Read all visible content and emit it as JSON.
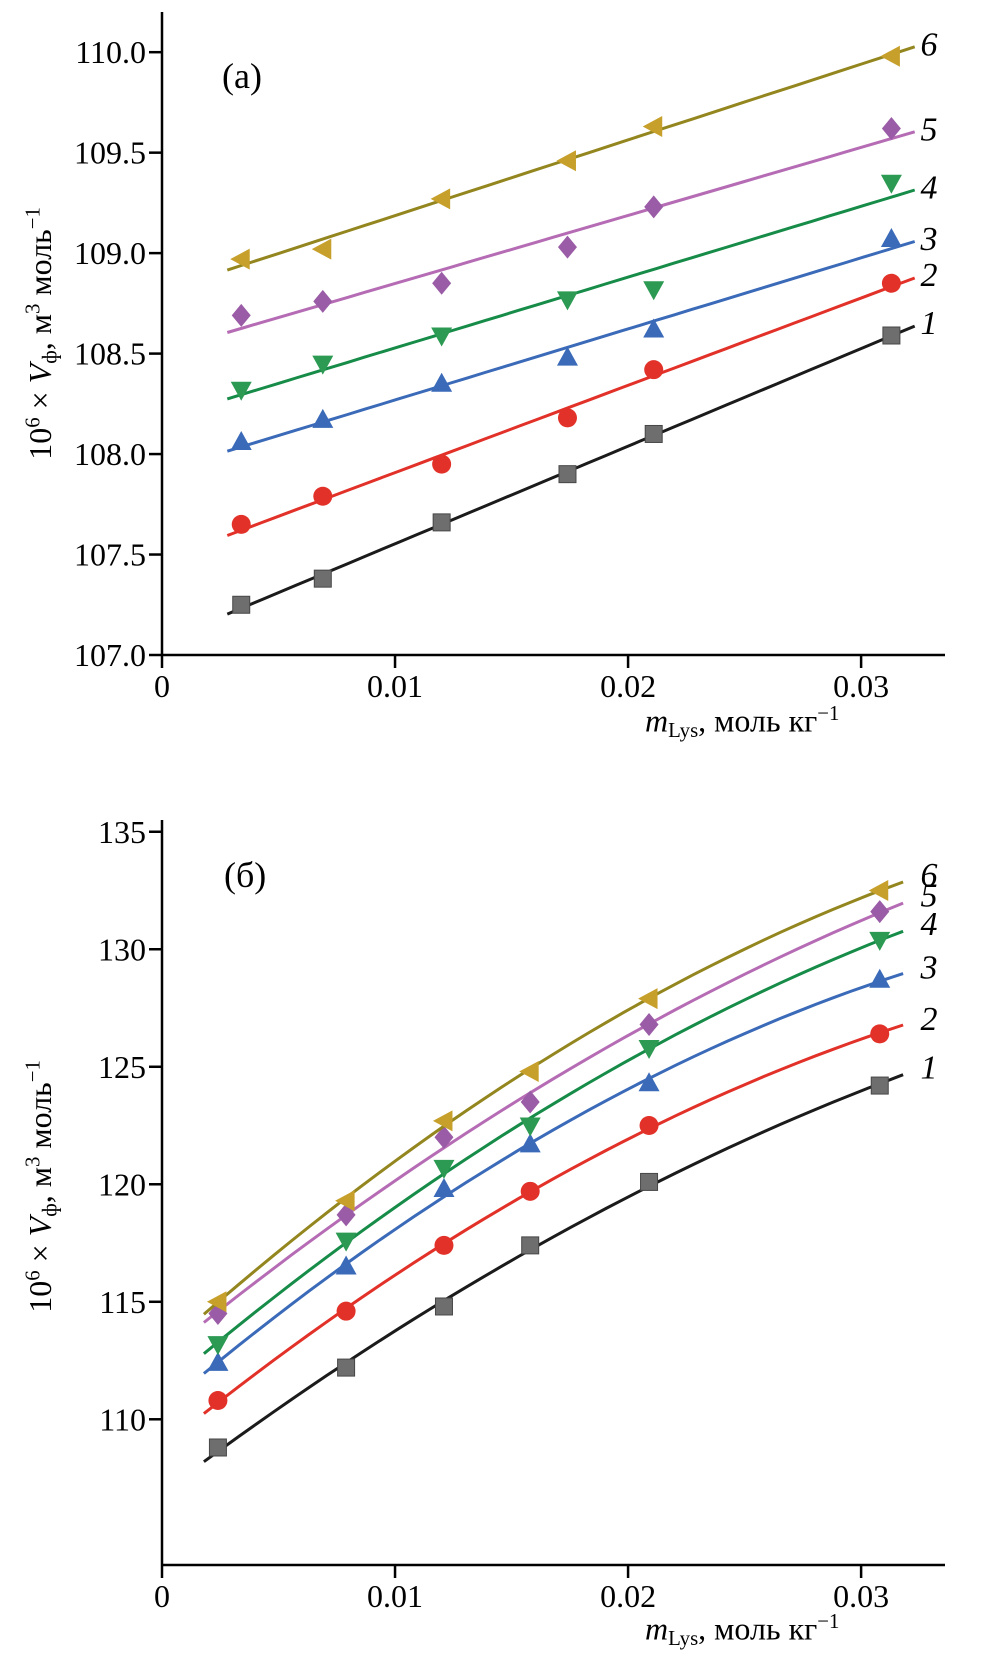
{
  "labels": {
    "x_var": "m",
    "x_sub": "Lys",
    "x_rest": ", моль кг",
    "x_sup": "−1",
    "y_base": "10",
    "y_exp": "6",
    "y_times": " × ",
    "y_var": "V",
    "y_var_sub": "ф",
    "y_unit1": ", м",
    "y_unit1_exp": "3",
    "y_unit2": " моль",
    "y_unit2_exp": "−1"
  },
  "chart_data": [
    {
      "type": "scatter",
      "panel_label": "(a)",
      "fit": "linear",
      "xlabel": "m_{Lys}, моль кг^{-1}",
      "ylabel": "10^{6} × V_{ф}, м^{3} моль^{-1}",
      "xlim": [
        0,
        0.0336
      ],
      "ylim": [
        107.0,
        110.2
      ],
      "grid": false,
      "legend_position": "right-of-line-ends",
      "xtick_values": [
        0,
        0.01,
        0.02,
        0.03
      ],
      "xtick_labels": [
        "0",
        "0.01",
        "0.02",
        "0.03"
      ],
      "ytick_values": [
        107.0,
        107.5,
        108.0,
        108.5,
        109.0,
        109.5,
        110.0
      ],
      "ytick_labels": [
        "107.0",
        "107.5",
        "108.0",
        "108.5",
        "109.0",
        "109.5",
        "110.0"
      ],
      "x": [
        0.0034,
        0.0069,
        0.012,
        0.0174,
        0.0211,
        0.0313
      ],
      "series": [
        {
          "name": "1",
          "marker": "square",
          "marker_color": "#6e6e6e",
          "line_color": "#1b1b1b",
          "values": [
            107.25,
            107.38,
            107.66,
            107.9,
            108.1,
            108.59
          ]
        },
        {
          "name": "2",
          "marker": "circle",
          "marker_color": "#e23128",
          "line_color": "#e23128",
          "values": [
            107.65,
            107.79,
            107.95,
            108.18,
            108.42,
            108.85
          ]
        },
        {
          "name": "3",
          "marker": "triangle-up",
          "marker_color": "#3a6ab8",
          "line_color": "#3a6ab8",
          "values": [
            108.06,
            108.17,
            108.35,
            108.48,
            108.62,
            109.07
          ]
        },
        {
          "name": "4",
          "marker": "triangle-down",
          "marker_color": "#2c9a52",
          "line_color": "#168c48",
          "values": [
            108.32,
            108.45,
            108.59,
            108.77,
            108.82,
            109.35
          ]
        },
        {
          "name": "5",
          "marker": "diamond",
          "marker_color": "#9a5ca6",
          "line_color": "#b56cb4",
          "values": [
            108.69,
            108.76,
            108.85,
            109.03,
            109.23,
            109.62
          ]
        },
        {
          "name": "6",
          "marker": "triangle-left",
          "marker_color": "#c7a02b",
          "line_color": "#94861f",
          "values": [
            108.97,
            109.02,
            109.27,
            109.46,
            109.63,
            109.98
          ]
        }
      ]
    },
    {
      "type": "scatter",
      "panel_label": "(б)",
      "fit": "quadratic",
      "xlabel": "m_{Lys}, моль кг^{-1}",
      "ylabel": "10^{6} × V_{ф}, м^{3} моль^{-1}",
      "xlim": [
        0,
        0.0336
      ],
      "ylim": [
        103.8,
        135.5
      ],
      "grid": false,
      "legend_position": "right-of-line-ends",
      "xtick_values": [
        0,
        0.01,
        0.02,
        0.03
      ],
      "xtick_labels": [
        "0",
        "0.01",
        "0.02",
        "0.03"
      ],
      "ytick_values": [
        110,
        115,
        120,
        125,
        130,
        135
      ],
      "ytick_labels": [
        "110",
        "115",
        "120",
        "125",
        "130",
        "135"
      ],
      "x": [
        0.0024,
        0.0079,
        0.0121,
        0.0158,
        0.0209,
        0.0308
      ],
      "series": [
        {
          "name": "1",
          "marker": "square",
          "marker_color": "#6e6e6e",
          "line_color": "#1b1b1b",
          "values": [
            108.8,
            112.2,
            114.8,
            117.4,
            120.1,
            124.2
          ]
        },
        {
          "name": "2",
          "marker": "circle",
          "marker_color": "#e23128",
          "line_color": "#e23128",
          "values": [
            110.8,
            114.6,
            117.4,
            119.7,
            122.5,
            126.4
          ]
        },
        {
          "name": "3",
          "marker": "triangle-up",
          "marker_color": "#3a6ab8",
          "line_color": "#3a6ab8",
          "values": [
            112.4,
            116.5,
            119.8,
            121.7,
            124.3,
            128.7
          ]
        },
        {
          "name": "4",
          "marker": "triangle-down",
          "marker_color": "#2c9a52",
          "line_color": "#168c48",
          "values": [
            113.2,
            117.6,
            120.7,
            122.5,
            125.8,
            130.4
          ]
        },
        {
          "name": "5",
          "marker": "diamond",
          "marker_color": "#9a5ca6",
          "line_color": "#b56cb4",
          "values": [
            114.5,
            118.7,
            122.0,
            123.5,
            126.8,
            131.6
          ]
        },
        {
          "name": "6",
          "marker": "triangle-left",
          "marker_color": "#c7a02b",
          "line_color": "#94861f",
          "values": [
            115.0,
            119.3,
            122.7,
            124.8,
            127.9,
            132.5
          ]
        }
      ]
    }
  ]
}
